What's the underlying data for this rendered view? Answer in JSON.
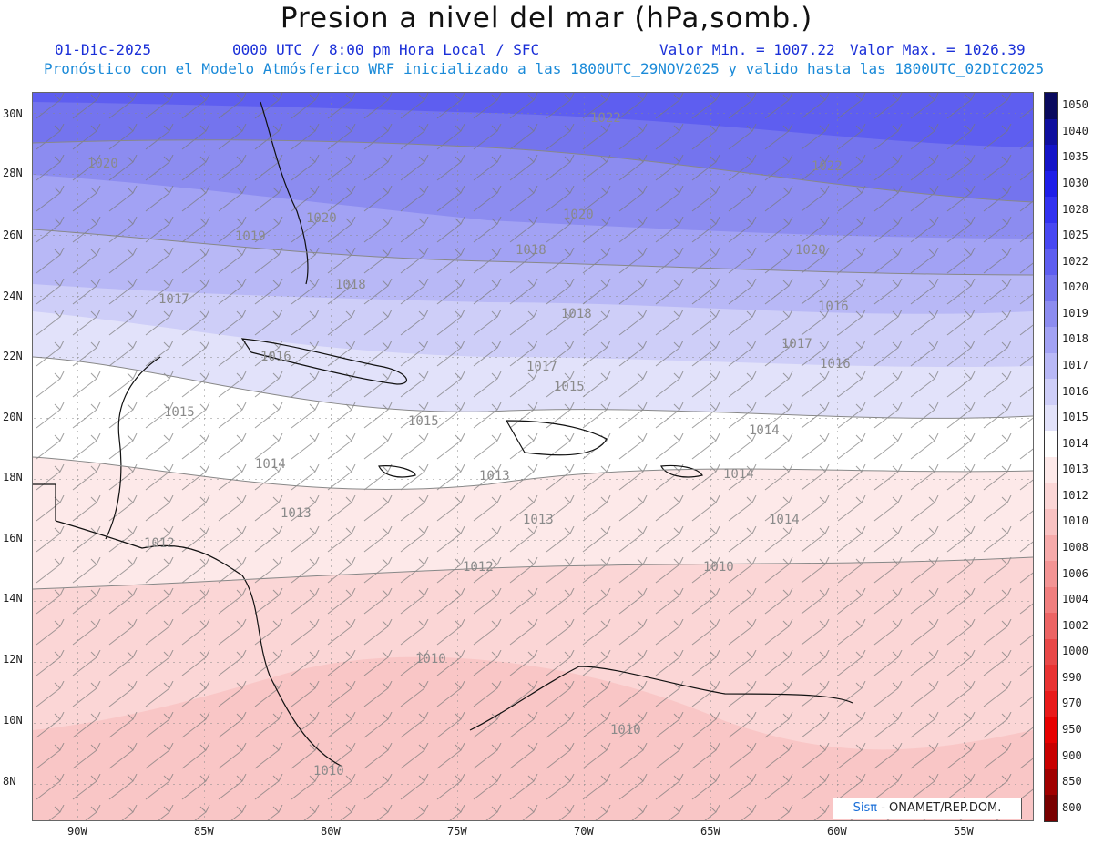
{
  "header": {
    "title": "Presion a nivel del mar (hPa,somb.)",
    "date": "01-Dic-2025",
    "time_info": "0000 UTC / 8:00 pm Hora Local / SFC",
    "min_value": "Valor Min. = 1007.22",
    "max_value": "Valor Max. = 1026.39",
    "forecast_info": "Pronóstico con el Modelo Atmósferico WRF inicializado a las 1800UTC_29NOV2025 y valido hasta las  1800UTC_02DIC2025"
  },
  "axes": {
    "lat_labels": [
      "30N",
      "28N",
      "26N",
      "24N",
      "22N",
      "20N",
      "18N",
      "16N",
      "14N",
      "12N",
      "10N",
      "8N"
    ],
    "lon_labels": [
      "90W",
      "85W",
      "80W",
      "75W",
      "70W",
      "65W",
      "60W",
      "55W"
    ]
  },
  "colorbar": {
    "labels": [
      "1050",
      "1040",
      "1035",
      "1030",
      "1028",
      "1025",
      "1022",
      "1020",
      "1019",
      "1018",
      "1017",
      "1016",
      "1015",
      "1014",
      "1013",
      "1012",
      "1010",
      "1008",
      "1006",
      "1004",
      "1002",
      "1000",
      "990",
      "970",
      "950",
      "900",
      "850",
      "800"
    ],
    "colors": [
      "#0a0a5e",
      "#0f0f9e",
      "#1414c8",
      "#1e1ee8",
      "#3232f0",
      "#4848f2",
      "#5e5ef0",
      "#7474ee",
      "#8c8cf0",
      "#a2a2f4",
      "#b8b8f6",
      "#ceceF8",
      "#e2e2fa",
      "#ffffff",
      "#fde9e9",
      "#fbd6d6",
      "#f9c2c2",
      "#f6aaaa",
      "#f39494",
      "#f07e7e",
      "#ec6464",
      "#e84848",
      "#e83232",
      "#e81a1a",
      "#e60000",
      "#c80000",
      "#a00000",
      "#780000"
    ]
  },
  "isobar_labels": [
    {
      "text": "1022"
    },
    {
      "text": "1022"
    },
    {
      "text": "1020"
    },
    {
      "text": "1020"
    },
    {
      "text": "1020"
    },
    {
      "text": "1020"
    },
    {
      "text": "1019"
    },
    {
      "text": "1018"
    },
    {
      "text": "1018"
    },
    {
      "text": "1017"
    },
    {
      "text": "1018"
    },
    {
      "text": "1016"
    },
    {
      "text": "1017"
    },
    {
      "text": "1016"
    },
    {
      "text": "1017"
    },
    {
      "text": "1016"
    },
    {
      "text": "1015"
    },
    {
      "text": "1015"
    },
    {
      "text": "1015"
    },
    {
      "text": "1014"
    },
    {
      "text": "1014"
    },
    {
      "text": "1014"
    },
    {
      "text": "1013"
    },
    {
      "text": "1013"
    },
    {
      "text": "1013"
    },
    {
      "text": "1014"
    },
    {
      "text": "1012"
    },
    {
      "text": "1012"
    },
    {
      "text": "1010"
    },
    {
      "text": "1010"
    },
    {
      "text": "1010"
    },
    {
      "text": "1010"
    }
  ],
  "credit": {
    "brand": "Sisπ",
    "text": " - ONAMET/REP.DOM."
  }
}
